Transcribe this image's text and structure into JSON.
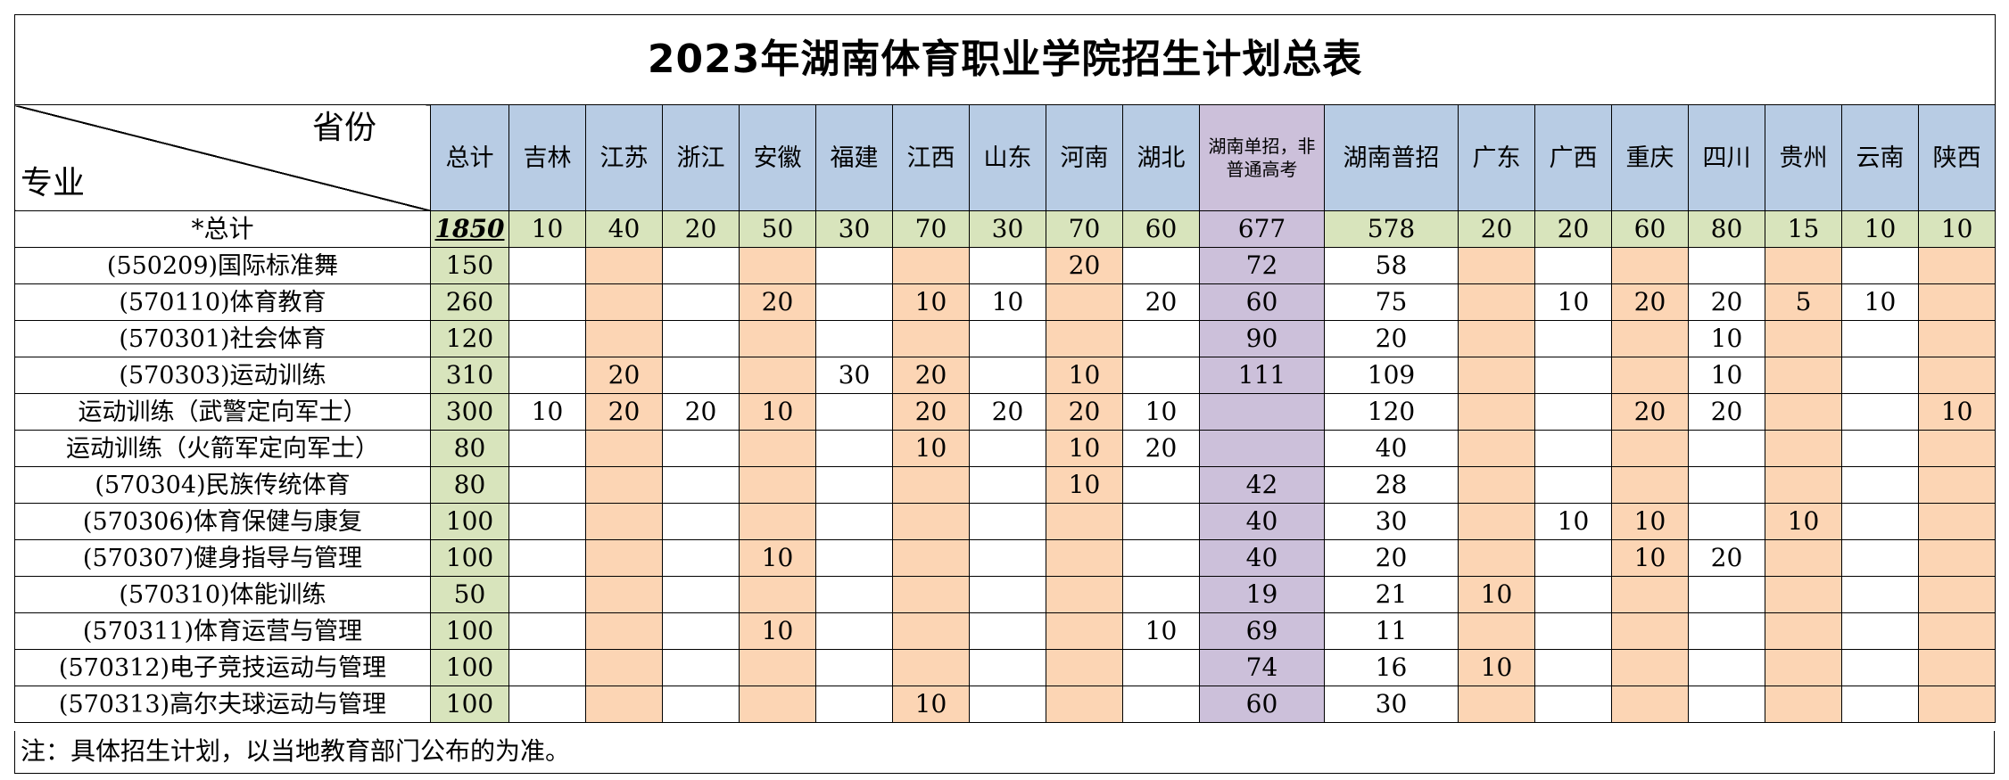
{
  "title": "2023年湖南体育职业学院招生计划总表",
  "corner": {
    "top_right": "省份",
    "bottom_left": "专业"
  },
  "headers": [
    "总计",
    "吉林",
    "江苏",
    "浙江",
    "安徽",
    "福建",
    "江西",
    "山东",
    "河南",
    "湖北",
    "湖南单招，非普通高考",
    "湖南普招",
    "广东",
    "广西",
    "重庆",
    "四川",
    "贵州",
    "云南",
    "陕西"
  ],
  "total_row": {
    "label": "*总计",
    "values": [
      "1850",
      "10",
      "40",
      "20",
      "50",
      "30",
      "70",
      "30",
      "70",
      "60",
      "677",
      "578",
      "20",
      "20",
      "60",
      "80",
      "15",
      "10",
      "10"
    ]
  },
  "rows": [
    {
      "major": "(550209)国际标准舞",
      "values": [
        "150",
        "",
        "",
        "",
        "",
        "",
        "",
        "",
        "20",
        "",
        "72",
        "58",
        "",
        "",
        "",
        "",
        "",
        "",
        ""
      ]
    },
    {
      "major": "(570110)体育教育",
      "values": [
        "260",
        "",
        "",
        "",
        "20",
        "",
        "10",
        "10",
        "",
        "20",
        "60",
        "75",
        "",
        "10",
        "20",
        "20",
        "5",
        "10",
        ""
      ]
    },
    {
      "major": "(570301)社会体育",
      "values": [
        "120",
        "",
        "",
        "",
        "",
        "",
        "",
        "",
        "",
        "",
        "90",
        "20",
        "",
        "",
        "",
        "10",
        "",
        "",
        ""
      ]
    },
    {
      "major": "(570303)运动训练",
      "values": [
        "310",
        "",
        "20",
        "",
        "",
        "30",
        "20",
        "",
        "10",
        "",
        "111",
        "109",
        "",
        "",
        "",
        "10",
        "",
        "",
        ""
      ]
    },
    {
      "major": "运动训练（武警定向军士）",
      "values": [
        "300",
        "10",
        "20",
        "20",
        "10",
        "",
        "20",
        "20",
        "20",
        "10",
        "",
        "120",
        "",
        "",
        "20",
        "20",
        "",
        "",
        "10"
      ]
    },
    {
      "major": "运动训练（火箭军定向军士）",
      "values": [
        "80",
        "",
        "",
        "",
        "",
        "",
        "10",
        "",
        "10",
        "20",
        "",
        "40",
        "",
        "",
        "",
        "",
        "",
        "",
        ""
      ]
    },
    {
      "major": "(570304)民族传统体育",
      "values": [
        "80",
        "",
        "",
        "",
        "",
        "",
        "",
        "",
        "10",
        "",
        "42",
        "28",
        "",
        "",
        "",
        "",
        "",
        "",
        ""
      ]
    },
    {
      "major": "(570306)体育保健与康复",
      "values": [
        "100",
        "",
        "",
        "",
        "",
        "",
        "",
        "",
        "",
        "",
        "40",
        "30",
        "",
        "10",
        "10",
        "",
        "10",
        "",
        ""
      ]
    },
    {
      "major": "(570307)健身指导与管理",
      "values": [
        "100",
        "",
        "",
        "",
        "10",
        "",
        "",
        "",
        "",
        "",
        "40",
        "20",
        "",
        "",
        "10",
        "20",
        "",
        "",
        ""
      ]
    },
    {
      "major": "(570310)体能训练",
      "values": [
        "50",
        "",
        "",
        "",
        "",
        "",
        "",
        "",
        "",
        "",
        "19",
        "21",
        "10",
        "",
        "",
        "",
        "",
        "",
        ""
      ]
    },
    {
      "major": "(570311)体育运营与管理",
      "values": [
        "100",
        "",
        "",
        "",
        "10",
        "",
        "",
        "",
        "",
        "10",
        "69",
        "11",
        "",
        "",
        "",
        "",
        "",
        "",
        ""
      ]
    },
    {
      "major": "(570312)电子竞技运动与管理",
      "values": [
        "100",
        "",
        "",
        "",
        "",
        "",
        "",
        "",
        "",
        "",
        "74",
        "16",
        "10",
        "",
        "",
        "",
        "",
        "",
        ""
      ]
    },
    {
      "major": "(570313)高尔夫球运动与管理",
      "values": [
        "100",
        "",
        "",
        "",
        "",
        "",
        "10",
        "",
        "",
        "",
        "60",
        "30",
        "",
        "",
        "",
        "",
        "",
        "",
        ""
      ]
    }
  ],
  "note": "注：具体招生计划，以当地教育部门公布的为准。",
  "colors": {
    "header_blue": "#b8cce4",
    "purple": "#ccc0da",
    "green": "#d8e4bc",
    "orange": "#fcd5b4"
  }
}
